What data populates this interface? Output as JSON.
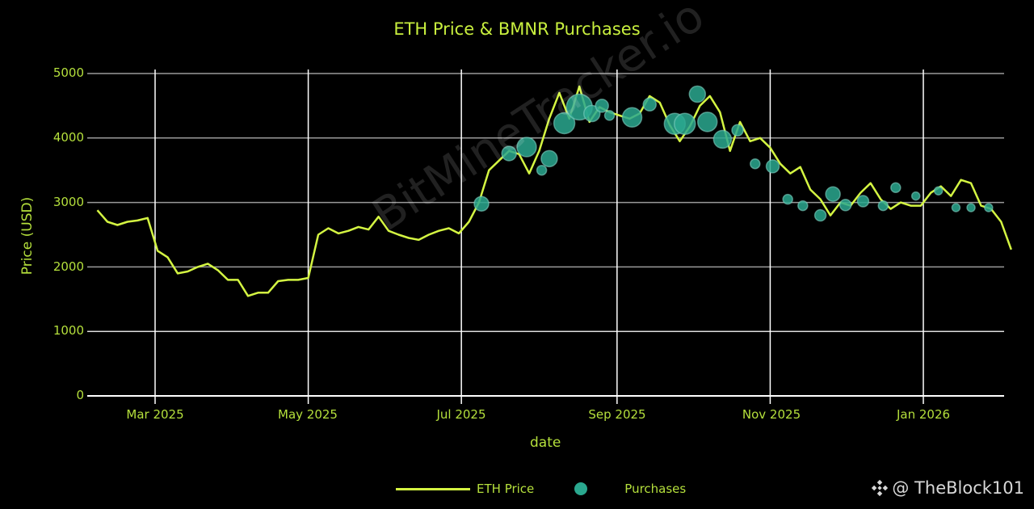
{
  "chart_data": {
    "type": "line",
    "title": "ETH Price & BMNR Purchases",
    "xlabel": "date",
    "ylabel": "Price (USD)",
    "ylim": [
      0,
      5000
    ],
    "yticks": [
      "0",
      "1000",
      "2000",
      "3000",
      "4000",
      "5000"
    ],
    "xticks": [
      "Mar 2025",
      "May 2025",
      "Jul 2025",
      "Sep 2025",
      "Nov 2025",
      "Jan 2026"
    ],
    "grid": true,
    "legend": [
      "ETH Price",
      "Purchases"
    ],
    "legend_position": "bottom",
    "series": [
      {
        "name": "ETH Price",
        "color": "#d4f542",
        "x": [
          "2025-02-06",
          "2025-02-10",
          "2025-02-14",
          "2025-02-18",
          "2025-02-22",
          "2025-02-26",
          "2025-03-02",
          "2025-03-06",
          "2025-03-10",
          "2025-03-14",
          "2025-03-18",
          "2025-03-22",
          "2025-03-26",
          "2025-03-30",
          "2025-04-03",
          "2025-04-07",
          "2025-04-11",
          "2025-04-15",
          "2025-04-19",
          "2025-04-23",
          "2025-04-27",
          "2025-05-01",
          "2025-05-05",
          "2025-05-09",
          "2025-05-13",
          "2025-05-17",
          "2025-05-21",
          "2025-05-25",
          "2025-05-29",
          "2025-06-02",
          "2025-06-06",
          "2025-06-10",
          "2025-06-14",
          "2025-06-18",
          "2025-06-22",
          "2025-06-26",
          "2025-06-30",
          "2025-07-04",
          "2025-07-08",
          "2025-07-12",
          "2025-07-16",
          "2025-07-20",
          "2025-07-24",
          "2025-07-28",
          "2025-08-01",
          "2025-08-05",
          "2025-08-09",
          "2025-08-13",
          "2025-08-17",
          "2025-08-21",
          "2025-08-25",
          "2025-08-29",
          "2025-09-02",
          "2025-09-06",
          "2025-09-10",
          "2025-09-14",
          "2025-09-18",
          "2025-09-22",
          "2025-09-26",
          "2025-09-30",
          "2025-10-04",
          "2025-10-08",
          "2025-10-12",
          "2025-10-16",
          "2025-10-20",
          "2025-10-24",
          "2025-10-28",
          "2025-11-01",
          "2025-11-05",
          "2025-11-09",
          "2025-11-13",
          "2025-11-17",
          "2025-11-21",
          "2025-11-25",
          "2025-11-29",
          "2025-12-03",
          "2025-12-07",
          "2025-12-11",
          "2025-12-15",
          "2025-12-19",
          "2025-12-23",
          "2025-12-27",
          "2025-12-31",
          "2026-01-04",
          "2026-01-08",
          "2026-01-12",
          "2026-01-16",
          "2026-01-20",
          "2026-01-24",
          "2026-01-28",
          "2026-02-01",
          "2026-02-05"
        ],
        "values": [
          2880,
          2700,
          2650,
          2700,
          2720,
          2760,
          2250,
          2150,
          1900,
          1930,
          2000,
          2050,
          1950,
          1800,
          1800,
          1550,
          1600,
          1600,
          1780,
          1800,
          1800,
          1830,
          2500,
          2600,
          2520,
          2560,
          2620,
          2580,
          2780,
          2560,
          2500,
          2450,
          2420,
          2500,
          2560,
          2600,
          2520,
          2700,
          3000,
          3500,
          3650,
          3800,
          3750,
          3450,
          3800,
          4300,
          4700,
          4300,
          4800,
          4250,
          4480,
          4400,
          4350,
          4300,
          4380,
          4650,
          4550,
          4200,
          3950,
          4180,
          4500,
          4650,
          4400,
          3800,
          4250,
          3950,
          4000,
          3850,
          3600,
          3450,
          3550,
          3200,
          3050,
          2800,
          3000,
          2950,
          3150,
          3300,
          3050,
          2900,
          3000,
          2950,
          2950,
          3150,
          3250,
          3100,
          3350,
          3300,
          2950,
          2900,
          2700,
          2270
        ]
      },
      {
        "name": "Purchases",
        "type": "scatter",
        "color": "#2aa88f",
        "x": [
          "2025-07-09",
          "2025-07-20",
          "2025-07-27",
          "2025-08-02",
          "2025-08-05",
          "2025-08-11",
          "2025-08-17",
          "2025-08-22",
          "2025-08-26",
          "2025-08-29",
          "2025-09-07",
          "2025-09-14",
          "2025-09-24",
          "2025-09-28",
          "2025-10-03",
          "2025-10-07",
          "2025-10-13",
          "2025-10-19",
          "2025-10-26",
          "2025-11-02",
          "2025-11-08",
          "2025-11-14",
          "2025-11-21",
          "2025-11-26",
          "2025-12-01",
          "2025-12-08",
          "2025-12-16",
          "2025-12-21",
          "2025-12-29",
          "2026-01-07",
          "2026-01-14",
          "2026-01-20",
          "2026-01-27"
        ],
        "values": [
          2980,
          3760,
          3860,
          3500,
          3680,
          4230,
          4480,
          4380,
          4500,
          4350,
          4320,
          4520,
          4220,
          4220,
          4680,
          4250,
          3980,
          4120,
          3600,
          3560,
          3050,
          2950,
          2800,
          3130,
          2960,
          3020,
          2950,
          3230,
          3100,
          3180,
          2920,
          2920,
          2920
        ],
        "sizes": [
          9,
          9,
          12,
          6,
          10,
          13,
          16,
          10,
          8,
          6,
          12,
          8,
          13,
          13,
          10,
          12,
          11,
          7,
          6,
          8,
          6,
          6,
          7,
          9,
          7,
          7,
          6,
          6,
          5,
          5,
          5,
          5,
          5
        ]
      }
    ]
  },
  "watermark": "BitMineTracker.io",
  "legend": {
    "line_label": "ETH Price",
    "dot_label": "Purchases"
  },
  "credit": {
    "handle": "@ TheBlock101"
  }
}
